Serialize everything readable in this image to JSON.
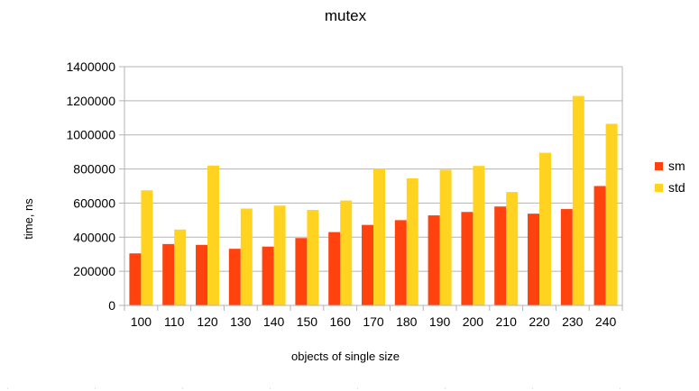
{
  "chart_data": {
    "type": "bar",
    "title": "mutex",
    "xlabel": "objects of single size",
    "ylabel": "time, ns",
    "ylim": [
      0,
      1400000
    ],
    "yticks": [
      0,
      200000,
      400000,
      600000,
      800000,
      1000000,
      1200000,
      1400000
    ],
    "categories": [
      "100",
      "110",
      "120",
      "130",
      "140",
      "150",
      "160",
      "170",
      "180",
      "190",
      "200",
      "210",
      "220",
      "230",
      "240"
    ],
    "grid": true,
    "legend_position": "right",
    "series": [
      {
        "name": "sm",
        "color": "#ff420e",
        "values": [
          305000,
          360000,
          355000,
          332000,
          345000,
          395000,
          430000,
          472000,
          500000,
          528000,
          548000,
          580000,
          538000,
          565000,
          700000
        ]
      },
      {
        "name": "std",
        "color": "#ffd320",
        "values": [
          675000,
          445000,
          820000,
          568000,
          585000,
          560000,
          615000,
          800000,
          745000,
          795000,
          818000,
          665000,
          895000,
          1228000,
          1065000
        ]
      }
    ]
  }
}
